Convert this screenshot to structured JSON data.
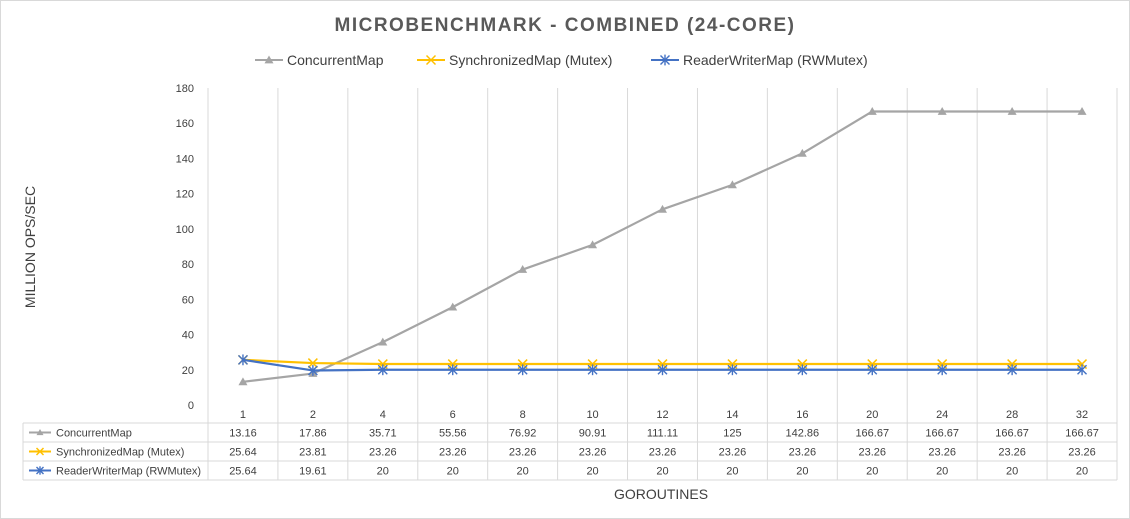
{
  "chart_data": {
    "type": "line",
    "title": "MICROBENCHMARK - COMBINED (24-CORE)",
    "xlabel": "GOROUTINES",
    "ylabel": "MILLION OPS/SEC",
    "ylim": [
      0,
      180
    ],
    "yticks": [
      0,
      20,
      40,
      60,
      80,
      100,
      120,
      140,
      160,
      180
    ],
    "categories": [
      "1",
      "2",
      "4",
      "6",
      "8",
      "10",
      "12",
      "14",
      "16",
      "20",
      "24",
      "28",
      "32"
    ],
    "legend_position": "top",
    "grid": "vertical",
    "data_table": true,
    "series": [
      {
        "name": "ConcurrentMap",
        "color": "#a5a5a5",
        "marker": "triangle",
        "values": [
          13.16,
          17.86,
          35.71,
          55.56,
          76.92,
          90.91,
          111.11,
          125,
          142.86,
          166.67,
          166.67,
          166.67,
          166.67
        ]
      },
      {
        "name": "SynchronizedMap (Mutex)",
        "color": "#ffc000",
        "marker": "x",
        "values": [
          25.64,
          23.81,
          23.26,
          23.26,
          23.26,
          23.26,
          23.26,
          23.26,
          23.26,
          23.26,
          23.26,
          23.26,
          23.26
        ]
      },
      {
        "name": "ReaderWriterMap (RWMutex)",
        "color": "#4472c4",
        "marker": "star",
        "values": [
          25.64,
          19.61,
          20,
          20,
          20,
          20,
          20,
          20,
          20,
          20,
          20,
          20,
          20
        ]
      }
    ]
  }
}
